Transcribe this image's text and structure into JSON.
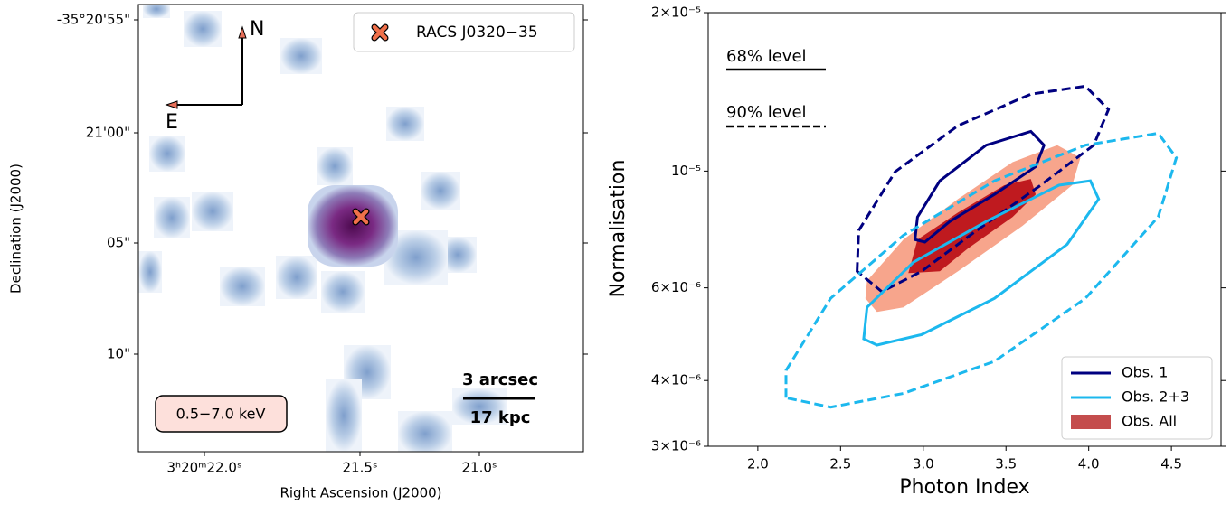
{
  "chart_data": [
    {
      "type": "image",
      "x_label": "Right Ascension (J2000)",
      "y_label": "Declination (J2000)",
      "xtick_labels": [
        "3ʰ20ᵐ22.0ˢ",
        "21.5ˢ",
        "21.0ˢ"
      ],
      "ytick_labels": [
        "-35°20'55\"",
        "21'00\"",
        "05\"",
        "10\""
      ],
      "legend": {
        "name": "RACS J0320−35",
        "color": "#f0704a"
      },
      "energy_band": "0.5−7.0 keV",
      "scale_angular": "3 arcsec",
      "scale_physical": "17 kpc",
      "north": "N",
      "east": "E"
    },
    {
      "type": "contour",
      "x_label": "Photon Index",
      "y_label": "Normalisation",
      "log_y": true,
      "xlim": [
        1.7,
        4.8
      ],
      "ylim": [
        3e-06,
        2e-05
      ],
      "xticks": [
        {
          "value": 2,
          "label": "2.0"
        },
        {
          "value": 2.5,
          "label": "2.5"
        },
        {
          "value": 3,
          "label": "3.0"
        },
        {
          "value": 3.5,
          "label": "3.5"
        },
        {
          "value": 4,
          "label": "4.0"
        },
        {
          "value": 4.5,
          "label": "4.5"
        }
      ],
      "yticks": [
        {
          "value": 3e-06,
          "label": "3×10⁻⁶"
        },
        {
          "value": 4e-06,
          "label": "4×10⁻⁶"
        },
        {
          "value": 6e-06,
          "label": "6×10⁻⁶"
        },
        {
          "value": 1e-05,
          "label": "10⁻⁵"
        },
        {
          "value": 2e-05,
          "label": "2×10⁻⁵"
        }
      ],
      "level_68": "68% level",
      "level_90": "90% level",
      "legend_position": "lower right",
      "series": [
        {
          "name": "Obs. All",
          "color": "#c44d4d",
          "filled": true,
          "fill_68": "#bf1a1f",
          "fill_90": "#f7a58c",
          "contour_90": {
            "x": [
              2.65,
              2.66,
              2.88,
              3.21,
              3.54,
              3.81,
              3.95,
              3.9,
              3.6,
              3.21,
              2.88,
              2.72
            ],
            "y": [
              5.73e-06,
              6.19e-06,
              7.41e-06,
              8.85e-06,
              1.04e-05,
              1.12e-05,
              1.06e-05,
              9.4e-06,
              7.87e-06,
              6.45e-06,
              5.51e-06,
              5.4e-06
            ]
          },
          "contour_68": {
            "x": [
              2.91,
              2.965,
              3.21,
              3.49,
              3.65,
              3.68,
              3.54,
              3.27,
              3.1
            ],
            "y": [
              6.4e-06,
              7.41e-06,
              8.34e-06,
              9.4e-06,
              9.66e-06,
              9.03e-06,
              8.18e-06,
              7.13e-06,
              6.45e-06
            ]
          }
        },
        {
          "name": "Obs. 1",
          "color": "#000080",
          "filled": false,
          "contour_90": {
            "x": [
              2.6,
              2.61,
              2.83,
              3.21,
              3.65,
              3.98,
              4.12,
              4.03,
              3.71,
              3.32,
              2.99,
              2.75
            ],
            "y": [
              6.45e-06,
              7.71e-06,
              9.97e-06,
              1.22e-05,
              1.4e-05,
              1.45e-05,
              1.31e-05,
              1.12e-05,
              9.4e-06,
              7.7e-06,
              6.45e-06,
              5.9e-06
            ]
          },
          "contour_68": {
            "x": [
              2.95,
              2.965,
              3.1,
              3.38,
              3.65,
              3.73,
              3.68,
              3.43,
              3.16,
              3.01
            ],
            "y": [
              7.41e-06,
              8.18e-06,
              9.58e-06,
              1.12e-05,
              1.19e-05,
              1.12e-05,
              1.02e-05,
              9.03e-06,
              8.02e-06,
              7.33e-06
            ]
          }
        },
        {
          "name": "Obs. 2+3",
          "color": "#1cb8ee",
          "filled": false,
          "contour_90": {
            "x": [
              2.17,
              2.17,
              2.44,
              2.88,
              3.43,
              3.98,
              4.42,
              4.53,
              4.42,
              3.98,
              3.43,
              2.88,
              2.44
            ],
            "y": [
              3.71e-06,
              4.18e-06,
              5.73e-06,
              7.55e-06,
              9.58e-06,
              1.12e-05,
              1.18e-05,
              1.06e-05,
              8.18e-06,
              5.73e-06,
              4.35e-06,
              3.78e-06,
              3.56e-06
            ]
          },
          "contour_68": {
            "x": [
              2.64,
              2.66,
              2.94,
              3.38,
              3.82,
              4.01,
              4.06,
              3.87,
              3.43,
              2.99,
              2.72
            ],
            "y": [
              4.8e-06,
              5.51e-06,
              6.71e-06,
              8.02e-06,
              9.4e-06,
              9.58e-06,
              8.85e-06,
              7.26e-06,
              5.73e-06,
              4.89e-06,
              4.67e-06
            ]
          }
        }
      ],
      "legend_order": [
        1,
        2,
        0
      ]
    }
  ]
}
